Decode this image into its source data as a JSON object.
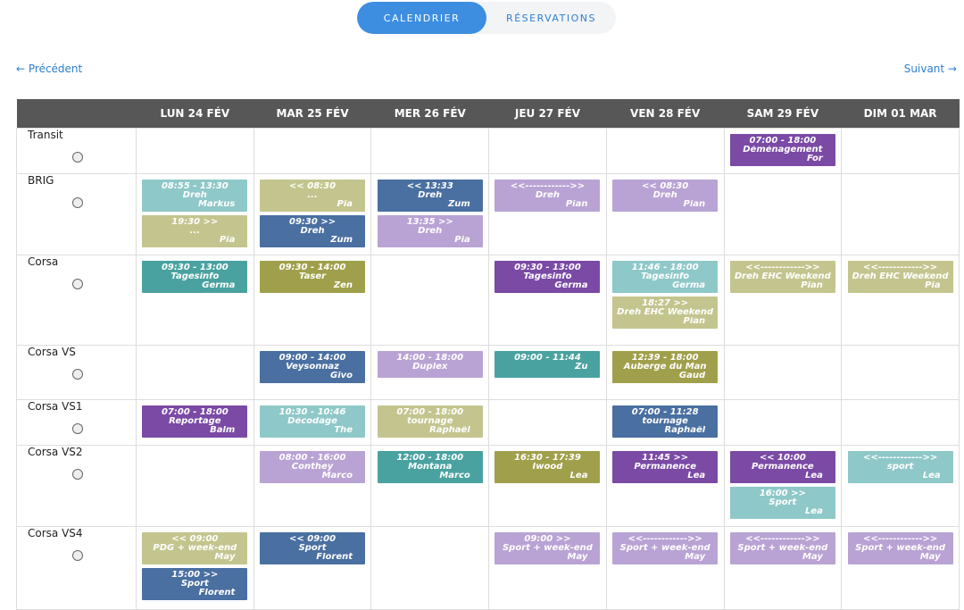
{
  "tabs": [
    "CALENDRIER",
    "RÉSERVATIONS"
  ],
  "nav": {
    "prev": "← Précédent",
    "next": "Suivant →"
  },
  "table": {
    "headers": [
      "LUN 24 FÉV",
      "MAR 25 FÉV",
      "MER 26 FÉV",
      "JEU 27 FÉV",
      "VEN 28 FÉV",
      "SAM 29 FÉV",
      "DIM 01 MAR"
    ],
    "rows": [
      {
        "label": "Transit",
        "cells": [
          [],
          [],
          [],
          [],
          [],
          [
            {
              "time": "07:00 - 18:00",
              "title": "Déménagement",
              "person": "For",
              "color": "#7a4aa5"
            }
          ],
          []
        ]
      },
      {
        "label": "BRIG",
        "cells": [
          [
            {
              "time": "08:55 - 13:30",
              "title": "Dreh",
              "person": "Markus",
              "color": "#8fc8c8"
            },
            {
              "time": "19:30 >>",
              "title": "...",
              "person": "Pia",
              "color": "#c4c58e"
            }
          ],
          [
            {
              "time": "<< 08:30",
              "title": "...",
              "person": "Pia",
              "color": "#c4c58e"
            },
            {
              "time": "09:30 >>",
              "title": "Dreh",
              "person": "Zum",
              "color": "#4a6fa1"
            }
          ],
          [
            {
              "time": "<< 13:33",
              "title": "Dreh",
              "person": "Zum",
              "color": "#4a6fa1"
            },
            {
              "time": "13:35 >>",
              "title": "Dreh",
              "person": "Pia",
              "color": "#b9a3d4"
            }
          ],
          [
            {
              "time": "<<------------>>",
              "title": "Dreh",
              "person": "Pian",
              "color": "#b9a3d4"
            }
          ],
          [
            {
              "time": "<< 08:30",
              "title": "Dreh",
              "person": "Pian",
              "color": "#b9a3d4"
            }
          ],
          [],
          []
        ]
      },
      {
        "label": "Corsa",
        "cells": [
          [
            {
              "time": "09:30 - 13:00",
              "title": "Tagesinfo",
              "person": "Germa",
              "color": "#4aa2a0"
            }
          ],
          [
            {
              "time": "09:30 - 14:00",
              "title": "Taser",
              "person": "Zen",
              "color": "#a0a04c"
            }
          ],
          [],
          [
            {
              "time": "09:30 - 13:00",
              "title": "Tagesinfo",
              "person": "Germa",
              "color": "#7a4aa5"
            }
          ],
          [
            {
              "time": "11:46 - 18:00",
              "title": "Tagesinfo",
              "person": "Germa",
              "color": "#8fc8c8"
            },
            {
              "time": "18:27 >>",
              "title": "Dreh EHC Weekend",
              "person": "Pian",
              "color": "#c4c58e"
            }
          ],
          [
            {
              "time": "<<------------>>",
              "title": "Dreh EHC Weekend",
              "person": "Pian",
              "color": "#c4c58e"
            }
          ],
          [
            {
              "time": "<<------------>>",
              "title": "Dreh EHC Weekend",
              "person": "Pia",
              "color": "#c4c58e"
            }
          ]
        ]
      },
      {
        "label": "Corsa VS",
        "cells": [
          [],
          [
            {
              "time": "09:00 - 14:00",
              "title": "Veysonnaz",
              "person": "Givo",
              "color": "#4a6fa1"
            }
          ],
          [
            {
              "time": "14:00 - 18:00",
              "title": "Duplex",
              "color": "#b9a3d4"
            }
          ],
          [
            {
              "time": "09:00 - 11:44",
              "person": "Zu",
              "color": "#4aa2a0"
            }
          ],
          [
            {
              "time": "12:39 - 18:00",
              "title": "Auberge du Man",
              "person": "Gaud",
              "color": "#a0a04c"
            }
          ],
          [],
          []
        ]
      },
      {
        "label": "Corsa VS1",
        "cells": [
          [
            {
              "time": "07:00 - 18:00",
              "title": "Reportage",
              "person": "Balm",
              "color": "#7a4aa5"
            }
          ],
          [
            {
              "time": "10:30 - 10:46",
              "title": "Décodage",
              "person": "The",
              "color": "#8fc8c8"
            }
          ],
          [
            {
              "time": "07:00 - 18:00",
              "title": "tournage",
              "person": "Raphaël",
              "color": "#c4c58e"
            }
          ],
          [],
          [
            {
              "time": "07:00 - 11:28",
              "title": "tournage",
              "person": "Raphaël",
              "color": "#4a6fa1"
            }
          ],
          [],
          []
        ]
      },
      {
        "label": "Corsa VS2",
        "cells": [
          [],
          [
            {
              "time": "08:00 - 16:00",
              "title": "Conthey",
              "person": "Marco",
              "color": "#b9a3d4"
            }
          ],
          [
            {
              "time": "12:00 - 18:00",
              "title": "Montana",
              "person": "Marco",
              "color": "#4aa2a0"
            }
          ],
          [
            {
              "time": "16:30 - 17:39",
              "title": "Iwood",
              "person": "Lea",
              "color": "#a0a04c"
            }
          ],
          [
            {
              "time": "11:45 >>",
              "title": "Permanence",
              "person": "Lea",
              "color": "#7a4aa5"
            }
          ],
          [
            {
              "time": "<< 10:00",
              "title": "Permanence",
              "person": "Lea",
              "color": "#7a4aa5"
            },
            {
              "time": "16:00 >>",
              "title": "Sport",
              "person": "Lea",
              "color": "#8fc8c8"
            }
          ],
          [
            {
              "time": "<<------------>>",
              "title": "sport",
              "person": "Lea",
              "color": "#8fc8c8"
            }
          ]
        ]
      },
      {
        "label": "Corsa VS4",
        "cells": [
          [
            {
              "time": "<< 09:00",
              "title": "PDG + week-end",
              "person": "May",
              "color": "#c4c58e"
            },
            {
              "time": "15:00 >>",
              "title": "Sport",
              "person": "Florent",
              "color": "#4a6fa1"
            }
          ],
          [
            {
              "time": "<< 09:00",
              "title": "Sport",
              "person": "Florent",
              "color": "#4a6fa1"
            }
          ],
          [],
          [
            {
              "time": "09:00 >>",
              "title": "Sport + week-end",
              "person": "May",
              "color": "#b9a3d4"
            }
          ],
          [
            {
              "time": "<<------------>>",
              "title": "Sport + week-end",
              "person": "May",
              "color": "#b9a3d4"
            }
          ],
          [
            {
              "time": "<<------------>>",
              "title": "Sport + week-end",
              "person": "May",
              "color": "#b9a3d4"
            }
          ],
          [
            {
              "time": "<<------------>>",
              "title": "Sport + week-end",
              "person": "May",
              "color": "#b9a3d4"
            }
          ]
        ]
      }
    ]
  }
}
